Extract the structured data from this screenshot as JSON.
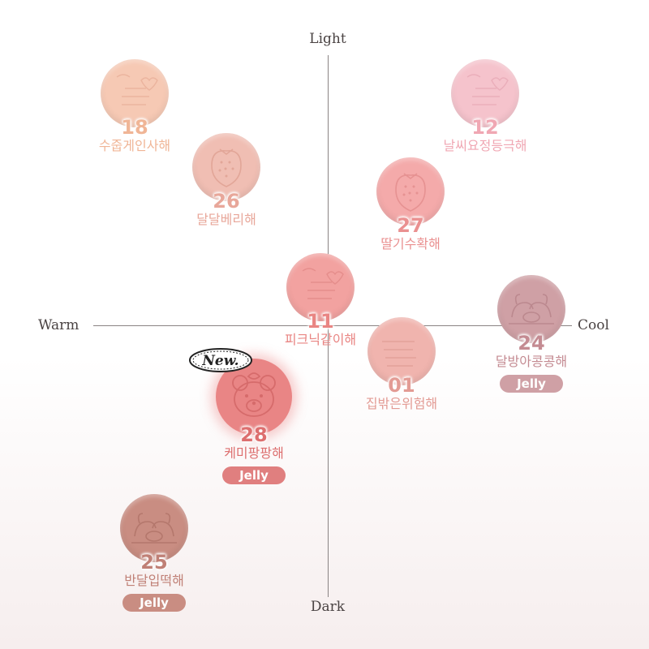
{
  "axes": {
    "top": "Light",
    "bottom": "Dark",
    "left": "Warm",
    "right": "Cool"
  },
  "products": [
    {
      "number": "18",
      "name": "수줍게인사해",
      "color": "#f6c9b4",
      "text_color": "#f0b596",
      "embossing": "text",
      "jelly": ""
    },
    {
      "number": "12",
      "name": "날씨요정등극해",
      "color": "#f5c3cc",
      "text_color": "#f0a7b3",
      "embossing": "text",
      "jelly": ""
    },
    {
      "number": "26",
      "name": "달달베리해",
      "color": "#f0beb3",
      "text_color": "#e8a79a",
      "embossing": "strawberry",
      "jelly": ""
    },
    {
      "number": "27",
      "name": "딸기수확해",
      "color": "#f4aaaa",
      "text_color": "#ea9090",
      "embossing": "strawberry",
      "jelly": ""
    },
    {
      "number": "11",
      "name": "피크닉같이해",
      "color": "#f2a2a0",
      "text_color": "#e98583",
      "embossing": "text",
      "jelly": ""
    },
    {
      "number": "24",
      "name": "달방아콩콩해",
      "color": "#cfa0a5",
      "text_color": "#c48b92",
      "embossing": "rabbits",
      "jelly": "Jelly"
    },
    {
      "number": "01",
      "name": "집밖은위험해",
      "color": "#f0b4ae",
      "text_color": "#e39b94",
      "embossing": "text",
      "jelly": ""
    },
    {
      "number": "28",
      "name": "케미팡팡해",
      "color": "#e98585",
      "text_color": "#dd6f6f",
      "embossing": "bear",
      "jelly": "Jelly",
      "badge": "New."
    },
    {
      "number": "25",
      "name": "반달입떡해",
      "color": "#c98d82",
      "text_color": "#c08076",
      "embossing": "rabbits",
      "jelly": "Jelly"
    }
  ]
}
